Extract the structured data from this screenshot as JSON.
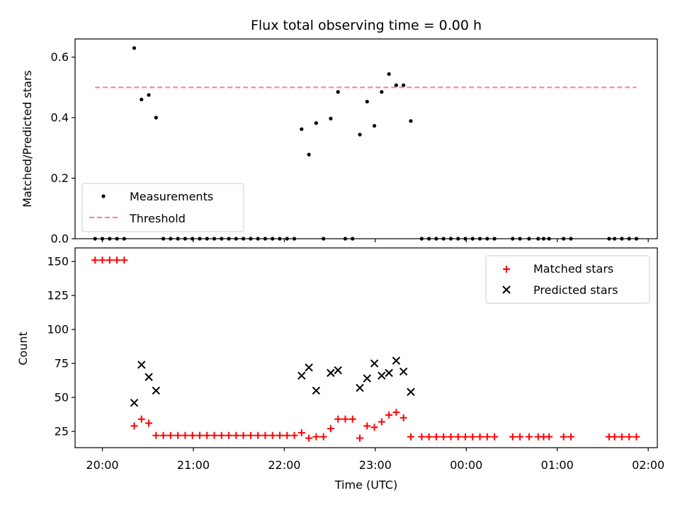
{
  "chart_data": [
    {
      "type": "scatter",
      "title": "Flux total observing time = 0.00 h",
      "xlabel": "",
      "ylabel": "Matched/Predicted stars",
      "ylim": [
        0,
        0.66
      ],
      "yticks": [
        0.0,
        0.2,
        0.4,
        0.6
      ],
      "ytick_labels": [
        "0.0",
        "0.2",
        "0.4",
        "0.6"
      ],
      "x_unit": "hours after 20:00 UTC",
      "xlim": [
        -0.3,
        6.1
      ],
      "legend_position": "lower-left",
      "series": [
        {
          "name": "Measurements",
          "marker": "dot",
          "color": "#000000",
          "points": [
            {
              "x": -0.08,
              "y": 0
            },
            {
              "x": 0.0,
              "y": 0
            },
            {
              "x": 0.08,
              "y": 0
            },
            {
              "x": 0.16,
              "y": 0
            },
            {
              "x": 0.24,
              "y": 0
            },
            {
              "x": 0.35,
              "y": 0.63
            },
            {
              "x": 0.43,
              "y": 0.46
            },
            {
              "x": 0.51,
              "y": 0.475
            },
            {
              "x": 0.59,
              "y": 0.4
            },
            {
              "x": 0.67,
              "y": 0
            },
            {
              "x": 0.75,
              "y": 0
            },
            {
              "x": 0.83,
              "y": 0
            },
            {
              "x": 0.91,
              "y": 0
            },
            {
              "x": 0.99,
              "y": 0
            },
            {
              "x": 1.07,
              "y": 0
            },
            {
              "x": 1.15,
              "y": 0
            },
            {
              "x": 1.23,
              "y": 0
            },
            {
              "x": 1.31,
              "y": 0
            },
            {
              "x": 1.39,
              "y": 0
            },
            {
              "x": 1.47,
              "y": 0
            },
            {
              "x": 1.55,
              "y": 0
            },
            {
              "x": 1.63,
              "y": 0
            },
            {
              "x": 1.71,
              "y": 0
            },
            {
              "x": 1.79,
              "y": 0
            },
            {
              "x": 1.87,
              "y": 0
            },
            {
              "x": 1.95,
              "y": 0
            },
            {
              "x": 2.03,
              "y": 0
            },
            {
              "x": 2.11,
              "y": 0
            },
            {
              "x": 2.19,
              "y": 0.362
            },
            {
              "x": 2.27,
              "y": 0.278
            },
            {
              "x": 2.35,
              "y": 0.382
            },
            {
              "x": 2.43,
              "y": 0
            },
            {
              "x": 2.51,
              "y": 0.397
            },
            {
              "x": 2.59,
              "y": 0.485
            },
            {
              "x": 2.67,
              "y": 0
            },
            {
              "x": 2.75,
              "y": 0
            },
            {
              "x": 2.83,
              "y": 0.344
            },
            {
              "x": 2.91,
              "y": 0.453
            },
            {
              "x": 2.99,
              "y": 0.373
            },
            {
              "x": 3.07,
              "y": 0.485
            },
            {
              "x": 3.15,
              "y": 0.544
            },
            {
              "x": 3.23,
              "y": 0.507
            },
            {
              "x": 3.31,
              "y": 0.507
            },
            {
              "x": 3.39,
              "y": 0.389
            },
            {
              "x": 3.51,
              "y": 0
            },
            {
              "x": 3.59,
              "y": 0
            },
            {
              "x": 3.67,
              "y": 0
            },
            {
              "x": 3.75,
              "y": 0
            },
            {
              "x": 3.83,
              "y": 0
            },
            {
              "x": 3.91,
              "y": 0
            },
            {
              "x": 3.99,
              "y": 0
            },
            {
              "x": 4.07,
              "y": 0
            },
            {
              "x": 4.15,
              "y": 0
            },
            {
              "x": 4.23,
              "y": 0
            },
            {
              "x": 4.31,
              "y": 0
            },
            {
              "x": 4.51,
              "y": 0
            },
            {
              "x": 4.59,
              "y": 0
            },
            {
              "x": 4.69,
              "y": 0
            },
            {
              "x": 4.79,
              "y": 0
            },
            {
              "x": 4.85,
              "y": 0
            },
            {
              "x": 4.91,
              "y": 0
            },
            {
              "x": 5.07,
              "y": 0
            },
            {
              "x": 5.15,
              "y": 0
            },
            {
              "x": 5.57,
              "y": 0
            },
            {
              "x": 5.63,
              "y": 0
            },
            {
              "x": 5.71,
              "y": 0
            },
            {
              "x": 5.79,
              "y": 0
            },
            {
              "x": 5.87,
              "y": 0
            }
          ]
        },
        {
          "name": "Threshold",
          "type": "line",
          "style": "dashed",
          "color": "#ff7f7f",
          "x": [
            -0.08,
            5.87
          ],
          "y": [
            0.5,
            0.5
          ]
        }
      ]
    },
    {
      "type": "scatter",
      "title": "",
      "xlabel": "Time (UTC)",
      "ylabel": "Count",
      "ylim": [
        13,
        160
      ],
      "yticks": [
        25,
        50,
        75,
        100,
        125,
        150
      ],
      "ytick_labels": [
        "25",
        "50",
        "75",
        "100",
        "125",
        "150"
      ],
      "x_unit": "hours after 20:00 UTC",
      "xlim": [
        -0.3,
        6.1
      ],
      "xticks": [
        0,
        1,
        2,
        3,
        4,
        5,
        6
      ],
      "xtick_labels": [
        "20:00",
        "21:00",
        "22:00",
        "23:00",
        "00:00",
        "01:00",
        "02:00"
      ],
      "legend_position": "upper-right",
      "series": [
        {
          "name": "Matched stars",
          "marker": "plus",
          "color": "#ff0000",
          "points": [
            {
              "x": -0.08,
              "y": 151
            },
            {
              "x": 0.0,
              "y": 151
            },
            {
              "x": 0.08,
              "y": 151
            },
            {
              "x": 0.16,
              "y": 151
            },
            {
              "x": 0.24,
              "y": 151
            },
            {
              "x": 0.35,
              "y": 29
            },
            {
              "x": 0.43,
              "y": 34
            },
            {
              "x": 0.51,
              "y": 31
            },
            {
              "x": 0.59,
              "y": 22
            },
            {
              "x": 0.67,
              "y": 22
            },
            {
              "x": 0.75,
              "y": 22
            },
            {
              "x": 0.83,
              "y": 22
            },
            {
              "x": 0.91,
              "y": 22
            },
            {
              "x": 0.99,
              "y": 22
            },
            {
              "x": 1.07,
              "y": 22
            },
            {
              "x": 1.15,
              "y": 22
            },
            {
              "x": 1.23,
              "y": 22
            },
            {
              "x": 1.31,
              "y": 22
            },
            {
              "x": 1.39,
              "y": 22
            },
            {
              "x": 1.47,
              "y": 22
            },
            {
              "x": 1.55,
              "y": 22
            },
            {
              "x": 1.63,
              "y": 22
            },
            {
              "x": 1.71,
              "y": 22
            },
            {
              "x": 1.79,
              "y": 22
            },
            {
              "x": 1.87,
              "y": 22
            },
            {
              "x": 1.95,
              "y": 22
            },
            {
              "x": 2.03,
              "y": 22
            },
            {
              "x": 2.11,
              "y": 22
            },
            {
              "x": 2.19,
              "y": 24
            },
            {
              "x": 2.27,
              "y": 20
            },
            {
              "x": 2.35,
              "y": 21
            },
            {
              "x": 2.43,
              "y": 21
            },
            {
              "x": 2.51,
              "y": 27
            },
            {
              "x": 2.59,
              "y": 34
            },
            {
              "x": 2.67,
              "y": 34
            },
            {
              "x": 2.75,
              "y": 34
            },
            {
              "x": 2.83,
              "y": 20
            },
            {
              "x": 2.91,
              "y": 29
            },
            {
              "x": 2.99,
              "y": 28
            },
            {
              "x": 3.07,
              "y": 32
            },
            {
              "x": 3.15,
              "y": 37
            },
            {
              "x": 3.23,
              "y": 39
            },
            {
              "x": 3.31,
              "y": 35
            },
            {
              "x": 3.39,
              "y": 21
            },
            {
              "x": 3.51,
              "y": 21
            },
            {
              "x": 3.59,
              "y": 21
            },
            {
              "x": 3.67,
              "y": 21
            },
            {
              "x": 3.75,
              "y": 21
            },
            {
              "x": 3.83,
              "y": 21
            },
            {
              "x": 3.91,
              "y": 21
            },
            {
              "x": 3.99,
              "y": 21
            },
            {
              "x": 4.07,
              "y": 21
            },
            {
              "x": 4.15,
              "y": 21
            },
            {
              "x": 4.23,
              "y": 21
            },
            {
              "x": 4.31,
              "y": 21
            },
            {
              "x": 4.51,
              "y": 21
            },
            {
              "x": 4.59,
              "y": 21
            },
            {
              "x": 4.69,
              "y": 21
            },
            {
              "x": 4.79,
              "y": 21
            },
            {
              "x": 4.85,
              "y": 21
            },
            {
              "x": 4.91,
              "y": 21
            },
            {
              "x": 5.07,
              "y": 21
            },
            {
              "x": 5.15,
              "y": 21
            },
            {
              "x": 5.57,
              "y": 21
            },
            {
              "x": 5.63,
              "y": 21
            },
            {
              "x": 5.71,
              "y": 21
            },
            {
              "x": 5.79,
              "y": 21
            },
            {
              "x": 5.87,
              "y": 21
            }
          ]
        },
        {
          "name": "Predicted stars",
          "marker": "x",
          "color": "#000000",
          "points": [
            {
              "x": 0.35,
              "y": 46
            },
            {
              "x": 0.43,
              "y": 74
            },
            {
              "x": 0.51,
              "y": 65
            },
            {
              "x": 0.59,
              "y": 55
            },
            {
              "x": 2.19,
              "y": 66
            },
            {
              "x": 2.27,
              "y": 72
            },
            {
              "x": 2.35,
              "y": 55
            },
            {
              "x": 2.51,
              "y": 68
            },
            {
              "x": 2.59,
              "y": 70
            },
            {
              "x": 2.83,
              "y": 57
            },
            {
              "x": 2.91,
              "y": 64
            },
            {
              "x": 2.99,
              "y": 75
            },
            {
              "x": 3.07,
              "y": 66
            },
            {
              "x": 3.15,
              "y": 68
            },
            {
              "x": 3.23,
              "y": 77
            },
            {
              "x": 3.31,
              "y": 69
            },
            {
              "x": 3.39,
              "y": 54
            }
          ]
        }
      ]
    }
  ]
}
